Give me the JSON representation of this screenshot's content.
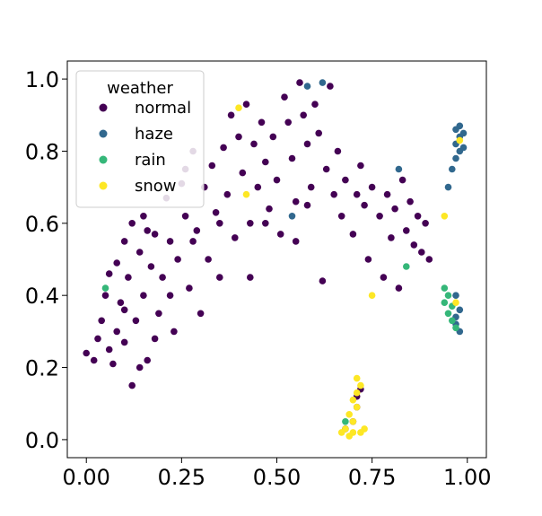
{
  "chart_data": {
    "type": "scatter",
    "title": "",
    "xlabel": "",
    "ylabel": "",
    "xlim": [
      -0.05,
      1.05
    ],
    "ylim": [
      -0.05,
      1.05
    ],
    "xticks": [
      "0.00",
      "0.25",
      "0.50",
      "0.75",
      "1.00"
    ],
    "yticks": [
      "0.0",
      "0.2",
      "0.4",
      "0.6",
      "0.8",
      "1.0"
    ],
    "grid": false,
    "legend": {
      "title": "weather",
      "placement": "top-left",
      "entries": [
        "normal",
        "haze",
        "rain",
        "snow"
      ]
    },
    "colors": {
      "normal": "#440154",
      "haze": "#31688e",
      "rain": "#35b779",
      "snow": "#fde725"
    },
    "series": [
      {
        "name": "normal",
        "points": [
          [
            0.0,
            0.24
          ],
          [
            0.02,
            0.22
          ],
          [
            0.03,
            0.28
          ],
          [
            0.04,
            0.33
          ],
          [
            0.05,
            0.4
          ],
          [
            0.06,
            0.25
          ],
          [
            0.06,
            0.46
          ],
          [
            0.07,
            0.21
          ],
          [
            0.08,
            0.3
          ],
          [
            0.08,
            0.49
          ],
          [
            0.09,
            0.38
          ],
          [
            0.1,
            0.55
          ],
          [
            0.1,
            0.27
          ],
          [
            0.11,
            0.45
          ],
          [
            0.12,
            0.6
          ],
          [
            0.12,
            0.15
          ],
          [
            0.13,
            0.33
          ],
          [
            0.14,
            0.52
          ],
          [
            0.15,
            0.4
          ],
          [
            0.15,
            0.62
          ],
          [
            0.16,
            0.22
          ],
          [
            0.17,
            0.48
          ],
          [
            0.18,
            0.57
          ],
          [
            0.19,
            0.35
          ],
          [
            0.2,
            0.45
          ],
          [
            0.21,
            0.67
          ],
          [
            0.22,
            0.55
          ],
          [
            0.23,
            0.3
          ],
          [
            0.24,
            0.5
          ],
          [
            0.25,
            0.71
          ],
          [
            0.26,
            0.62
          ],
          [
            0.27,
            0.42
          ],
          [
            0.28,
            0.8
          ],
          [
            0.29,
            0.58
          ],
          [
            0.3,
            0.35
          ],
          [
            0.31,
            0.7
          ],
          [
            0.32,
            0.5
          ],
          [
            0.33,
            0.76
          ],
          [
            0.34,
            0.63
          ],
          [
            0.35,
            0.45
          ],
          [
            0.36,
            0.81
          ],
          [
            0.37,
            0.68
          ],
          [
            0.38,
            0.9
          ],
          [
            0.39,
            0.56
          ],
          [
            0.4,
            0.84
          ],
          [
            0.41,
            0.74
          ],
          [
            0.42,
            0.93
          ],
          [
            0.43,
            0.6
          ],
          [
            0.44,
            0.82
          ],
          [
            0.45,
            0.7
          ],
          [
            0.46,
            0.88
          ],
          [
            0.47,
            0.77
          ],
          [
            0.48,
            0.64
          ],
          [
            0.49,
            0.84
          ],
          [
            0.5,
            0.72
          ],
          [
            0.51,
            0.57
          ],
          [
            0.52,
            0.95
          ],
          [
            0.53,
            0.88
          ],
          [
            0.54,
            0.78
          ],
          [
            0.55,
            0.66
          ],
          [
            0.56,
            0.99
          ],
          [
            0.57,
            0.9
          ],
          [
            0.58,
            0.82
          ],
          [
            0.59,
            0.7
          ],
          [
            0.6,
            0.93
          ],
          [
            0.61,
            0.85
          ],
          [
            0.62,
            0.44
          ],
          [
            0.63,
            0.75
          ],
          [
            0.64,
            0.98
          ],
          [
            0.65,
            0.68
          ],
          [
            0.66,
            0.8
          ],
          [
            0.67,
            0.62
          ],
          [
            0.68,
            0.72
          ],
          [
            0.7,
            0.57
          ],
          [
            0.71,
            0.68
          ],
          [
            0.72,
            0.76
          ],
          [
            0.73,
            0.65
          ],
          [
            0.74,
            0.5
          ],
          [
            0.75,
            0.7
          ],
          [
            0.77,
            0.62
          ],
          [
            0.78,
            0.45
          ],
          [
            0.79,
            0.68
          ],
          [
            0.8,
            0.56
          ],
          [
            0.81,
            0.64
          ],
          [
            0.82,
            0.42
          ],
          [
            0.83,
            0.72
          ],
          [
            0.84,
            0.58
          ],
          [
            0.85,
            0.66
          ],
          [
            0.86,
            0.54
          ],
          [
            0.87,
            0.62
          ],
          [
            0.88,
            0.52
          ],
          [
            0.89,
            0.6
          ],
          [
            0.9,
            0.5
          ],
          [
            0.58,
            0.65
          ],
          [
            0.55,
            0.55
          ],
          [
            0.47,
            0.6
          ],
          [
            0.43,
            0.45
          ],
          [
            0.35,
            0.6
          ],
          [
            0.28,
            0.55
          ],
          [
            0.22,
            0.4
          ],
          [
            0.18,
            0.28
          ],
          [
            0.14,
            0.2
          ],
          [
            0.1,
            0.36
          ],
          [
            0.16,
            0.58
          ],
          [
            0.26,
            0.75
          ],
          [
            0.71,
            0.12
          ],
          [
            0.7,
            0.05
          ],
          [
            0.72,
            0.14
          ],
          [
            0.68,
            0.03
          ],
          [
            0.71,
            0.09
          ]
        ]
      },
      {
        "name": "haze",
        "points": [
          [
            0.97,
            0.86
          ],
          [
            0.98,
            0.84
          ],
          [
            0.97,
            0.82
          ],
          [
            0.98,
            0.8
          ],
          [
            0.99,
            0.85
          ],
          [
            0.97,
            0.78
          ],
          [
            0.98,
            0.87
          ],
          [
            0.99,
            0.81
          ],
          [
            0.96,
            0.75
          ],
          [
            0.95,
            0.7
          ],
          [
            0.97,
            0.4
          ],
          [
            0.98,
            0.36
          ],
          [
            0.97,
            0.32
          ],
          [
            0.98,
            0.3
          ],
          [
            0.97,
            0.34
          ],
          [
            0.62,
            0.99
          ],
          [
            0.58,
            0.98
          ],
          [
            0.82,
            0.75
          ],
          [
            0.54,
            0.62
          ]
        ]
      },
      {
        "name": "rain",
        "points": [
          [
            0.94,
            0.42
          ],
          [
            0.95,
            0.4
          ],
          [
            0.96,
            0.37
          ],
          [
            0.95,
            0.35
          ],
          [
            0.96,
            0.33
          ],
          [
            0.94,
            0.38
          ],
          [
            0.97,
            0.31
          ],
          [
            0.05,
            0.42
          ],
          [
            0.68,
            0.05
          ],
          [
            0.84,
            0.48
          ]
        ]
      },
      {
        "name": "snow",
        "points": [
          [
            0.71,
            0.17
          ],
          [
            0.72,
            0.15
          ],
          [
            0.71,
            0.13
          ],
          [
            0.7,
            0.11
          ],
          [
            0.71,
            0.09
          ],
          [
            0.69,
            0.07
          ],
          [
            0.7,
            0.05
          ],
          [
            0.68,
            0.03
          ],
          [
            0.67,
            0.02
          ],
          [
            0.69,
            0.01
          ],
          [
            0.72,
            0.02
          ],
          [
            0.7,
            0.02
          ],
          [
            0.73,
            0.03
          ],
          [
            0.98,
            0.83
          ],
          [
            0.97,
            0.38
          ],
          [
            0.42,
            0.68
          ],
          [
            0.75,
            0.4
          ],
          [
            0.94,
            0.62
          ],
          [
            0.4,
            0.92
          ]
        ]
      }
    ]
  }
}
